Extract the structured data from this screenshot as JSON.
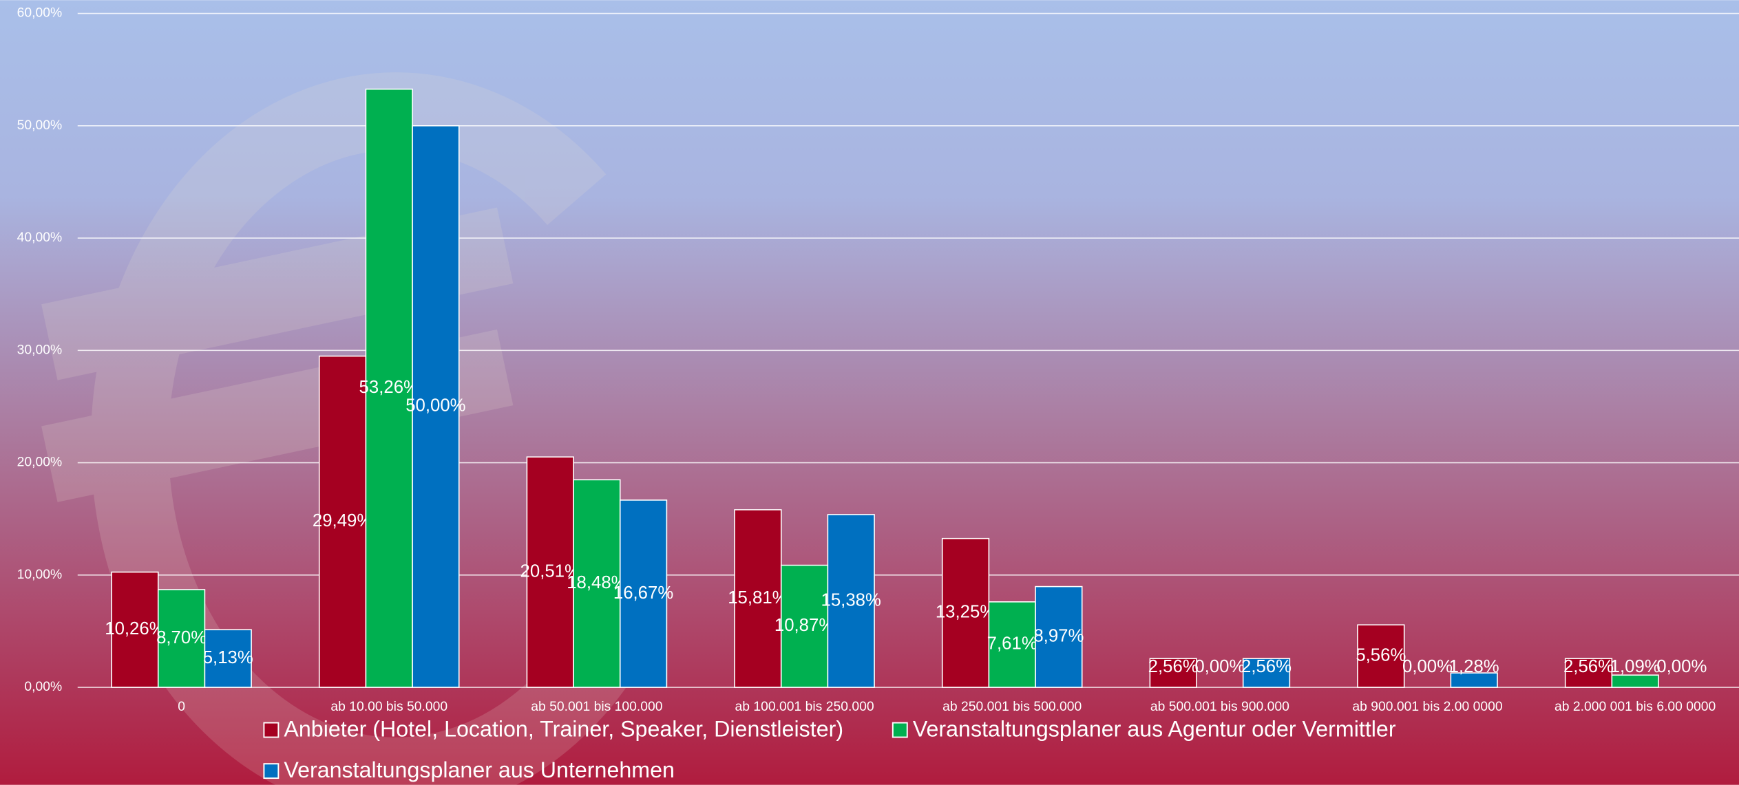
{
  "chart_data": {
    "type": "bar",
    "categories": [
      "0",
      "ab 10.00 bis 50.000",
      "ab 50.001 bis 100.000",
      "ab 100.001 bis 250.000",
      "ab 250.001 bis 500.000",
      "ab 500.001 bis 900.000",
      "ab 900.001 bis 2.00 0000",
      "ab 2.000 001 bis 6.00 0000"
    ],
    "series": [
      {
        "name": "Anbieter (Hotel, Location, Trainer, Speaker, Dienstleister)",
        "color": "#a50021",
        "values": [
          10.26,
          29.49,
          20.51,
          15.81,
          13.25,
          2.56,
          5.56,
          2.56
        ],
        "value_labels": [
          "10,26%",
          "29,49%",
          "20,51%",
          "15,81%",
          "13,25%",
          "2,56%",
          "5,56%",
          "2,56%"
        ]
      },
      {
        "name": "Veranstaltungsplaner aus Agentur oder Vermittler",
        "color": "#00b050",
        "values": [
          8.7,
          53.26,
          18.48,
          10.87,
          7.61,
          0.0,
          0.0,
          1.09
        ],
        "value_labels": [
          "8,70%",
          "53,26%",
          "18,48%",
          "10,87%",
          "7,61%",
          "0,00%",
          "0,00%",
          "1,09%"
        ]
      },
      {
        "name": "Veranstaltungsplaner aus Unternehmen",
        "color": "#0070c0",
        "values": [
          5.13,
          50.0,
          16.67,
          15.38,
          8.97,
          2.56,
          1.28,
          0.0
        ],
        "value_labels": [
          "5,13%",
          "50,00%",
          "16,67%",
          "15,38%",
          "8,97%",
          "2,56%",
          "1,28%",
          "0,00%"
        ]
      }
    ],
    "ylim": [
      0,
      60
    ],
    "yticks": [
      {
        "value": 0,
        "label": "0,00%"
      },
      {
        "value": 10,
        "label": "10,00%"
      },
      {
        "value": 20,
        "label": "20,00%"
      },
      {
        "value": 30,
        "label": "30,00%"
      },
      {
        "value": 40,
        "label": "40,00%"
      },
      {
        "value": 50,
        "label": "50,00%"
      },
      {
        "value": 60,
        "label": "60,00%"
      }
    ],
    "grid": true,
    "legend": "bottom"
  }
}
